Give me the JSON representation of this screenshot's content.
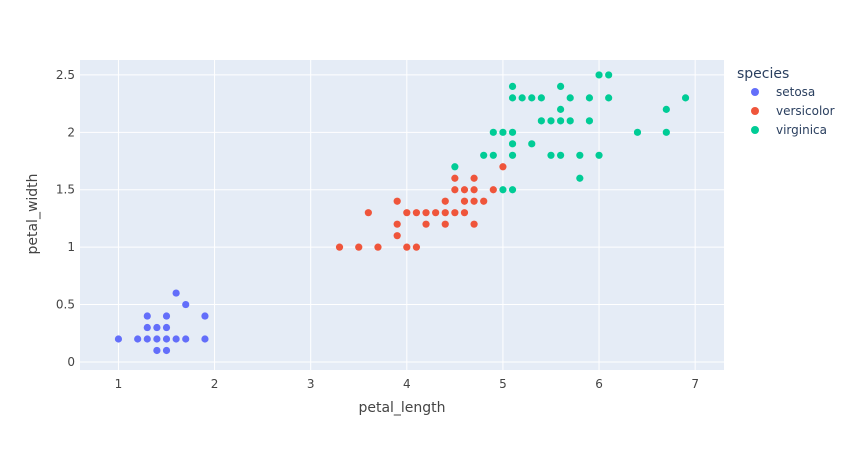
{
  "chart_data": {
    "type": "scatter",
    "title": "",
    "xlabel": "petal_length",
    "ylabel": "petal_width",
    "xlim": [
      0.6,
      7.3
    ],
    "ylim": [
      -0.07,
      2.63
    ],
    "x_ticks": [
      1,
      2,
      3,
      4,
      5,
      6,
      7
    ],
    "y_ticks": [
      0,
      0.5,
      1,
      1.5,
      2,
      2.5
    ],
    "x_tick_labels": [
      "1",
      "2",
      "3",
      "4",
      "5",
      "6",
      "7"
    ],
    "y_tick_labels": [
      "0",
      "0.5",
      "1",
      "1.5",
      "2",
      "2.5"
    ],
    "grid": true,
    "plot_background": "#e5ecf6",
    "grid_color": "#ffffff",
    "legend": {
      "title": "species",
      "position": "right"
    },
    "series": [
      {
        "name": "setosa",
        "color": "#636efa",
        "points": [
          [
            1.0,
            0.2
          ],
          [
            1.2,
            0.2
          ],
          [
            1.3,
            0.2
          ],
          [
            1.3,
            0.3
          ],
          [
            1.3,
            0.4
          ],
          [
            1.4,
            0.1
          ],
          [
            1.4,
            0.2
          ],
          [
            1.4,
            0.3
          ],
          [
            1.5,
            0.1
          ],
          [
            1.5,
            0.2
          ],
          [
            1.5,
            0.3
          ],
          [
            1.5,
            0.4
          ],
          [
            1.6,
            0.2
          ],
          [
            1.6,
            0.6
          ],
          [
            1.7,
            0.2
          ],
          [
            1.7,
            0.5
          ],
          [
            1.9,
            0.2
          ],
          [
            1.9,
            0.4
          ]
        ]
      },
      {
        "name": "versicolor",
        "color": "#ef553b",
        "points": [
          [
            3.3,
            1.0
          ],
          [
            3.5,
            1.0
          ],
          [
            3.6,
            1.3
          ],
          [
            3.7,
            1.0
          ],
          [
            3.9,
            1.1
          ],
          [
            3.9,
            1.2
          ],
          [
            3.9,
            1.4
          ],
          [
            4.0,
            1.0
          ],
          [
            4.0,
            1.3
          ],
          [
            4.1,
            1.0
          ],
          [
            4.1,
            1.3
          ],
          [
            4.2,
            1.2
          ],
          [
            4.2,
            1.3
          ],
          [
            4.3,
            1.3
          ],
          [
            4.4,
            1.2
          ],
          [
            4.4,
            1.3
          ],
          [
            4.4,
            1.4
          ],
          [
            4.5,
            1.3
          ],
          [
            4.5,
            1.5
          ],
          [
            4.5,
            1.6
          ],
          [
            4.6,
            1.3
          ],
          [
            4.6,
            1.4
          ],
          [
            4.6,
            1.5
          ],
          [
            4.7,
            1.2
          ],
          [
            4.7,
            1.4
          ],
          [
            4.7,
            1.5
          ],
          [
            4.7,
            1.6
          ],
          [
            4.8,
            1.4
          ],
          [
            4.9,
            1.5
          ],
          [
            5.0,
            1.7
          ]
        ]
      },
      {
        "name": "virginica",
        "color": "#00cc96",
        "points": [
          [
            4.5,
            1.7
          ],
          [
            4.8,
            1.8
          ],
          [
            4.9,
            1.8
          ],
          [
            4.9,
            2.0
          ],
          [
            5.0,
            1.5
          ],
          [
            5.0,
            2.0
          ],
          [
            5.1,
            1.5
          ],
          [
            5.1,
            1.8
          ],
          [
            5.1,
            1.9
          ],
          [
            5.1,
            2.0
          ],
          [
            5.1,
            2.3
          ],
          [
            5.1,
            2.4
          ],
          [
            5.2,
            2.3
          ],
          [
            5.3,
            1.9
          ],
          [
            5.3,
            2.3
          ],
          [
            5.4,
            2.1
          ],
          [
            5.4,
            2.3
          ],
          [
            5.5,
            1.8
          ],
          [
            5.5,
            2.1
          ],
          [
            5.6,
            1.8
          ],
          [
            5.6,
            2.1
          ],
          [
            5.6,
            2.2
          ],
          [
            5.6,
            2.4
          ],
          [
            5.7,
            2.1
          ],
          [
            5.7,
            2.3
          ],
          [
            5.8,
            1.6
          ],
          [
            5.8,
            1.8
          ],
          [
            5.9,
            2.1
          ],
          [
            5.9,
            2.3
          ],
          [
            6.0,
            1.8
          ],
          [
            6.0,
            2.5
          ],
          [
            6.1,
            2.3
          ],
          [
            6.1,
            2.5
          ],
          [
            6.4,
            2.0
          ],
          [
            6.7,
            2.0
          ],
          [
            6.7,
            2.2
          ],
          [
            6.9,
            2.3
          ]
        ]
      }
    ]
  }
}
